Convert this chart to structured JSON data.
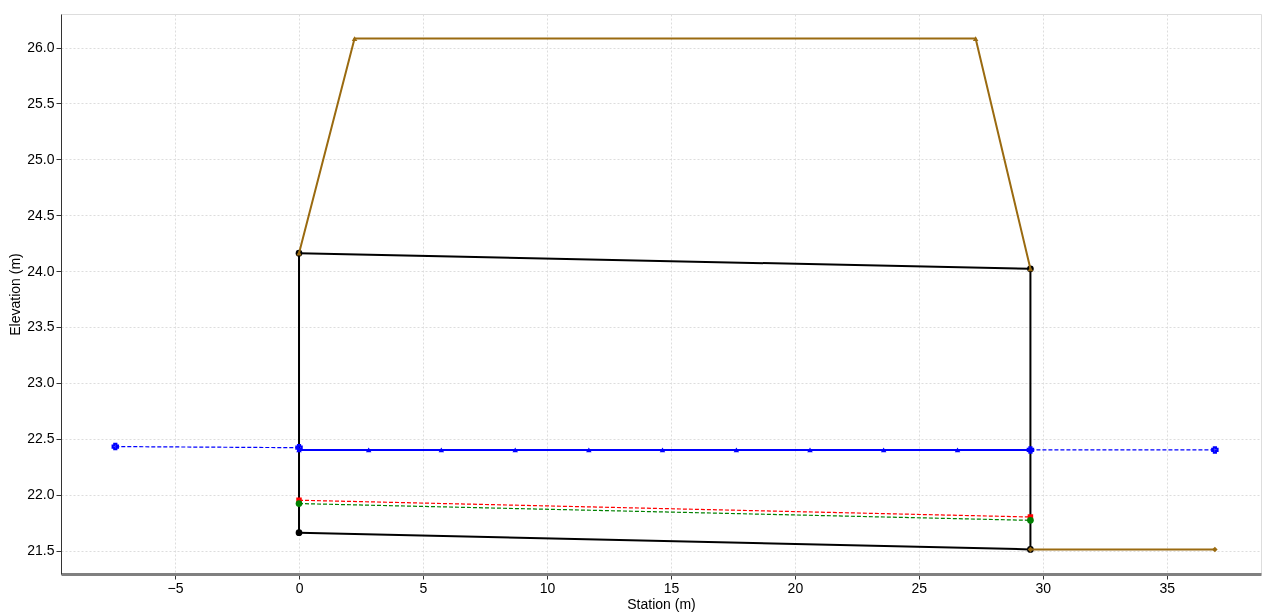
{
  "chart_data": {
    "type": "line",
    "xlabel": "Station (m)",
    "ylabel": "Elevation (m)",
    "xlim": [
      -9.6,
      38.8
    ],
    "ylim": [
      21.29,
      26.3
    ],
    "xticks": [
      -5,
      0,
      5,
      10,
      15,
      20,
      25,
      30,
      35
    ],
    "yticks": [
      {
        "value": 21.5,
        "label": "21.5"
      },
      {
        "value": 22,
        "label": "22.0"
      },
      {
        "value": 22.5,
        "label": "22.5"
      },
      {
        "value": 23,
        "label": "23.0"
      },
      {
        "value": 23.5,
        "label": "23.5"
      },
      {
        "value": 24,
        "label": "24.0"
      },
      {
        "value": 24.5,
        "label": "24.5"
      },
      {
        "value": 25,
        "label": "25.0"
      },
      {
        "value": 25.5,
        "label": "25.5"
      },
      {
        "value": 26,
        "label": "26.0"
      }
    ],
    "grid": true,
    "legend": false,
    "series": [
      {
        "color": "#000000",
        "marker": "circle",
        "line_style": "solid",
        "x": [
          0,
          29.5
        ],
        "values": [
          24.16,
          24.02
        ]
      },
      {
        "color": "#000000",
        "marker": "circle",
        "line_style": "solid",
        "x": [
          0,
          29.5
        ],
        "values": [
          21.66,
          21.51
        ]
      },
      {
        "color": "#000000",
        "marker": "none",
        "line_style": "solid",
        "x": [
          0,
          0
        ],
        "values": [
          21.66,
          24.16
        ]
      },
      {
        "color": "#000000",
        "marker": "none",
        "line_style": "solid",
        "x": [
          29.5,
          29.5
        ],
        "values": [
          21.51,
          24.02
        ]
      },
      {
        "color": "#9a6a10",
        "marker": "triangle",
        "line_style": "solid",
        "x": [
          0,
          2.24,
          27.29,
          29.5
        ],
        "values": [
          24.16,
          26.08,
          26.08,
          24.02
        ]
      },
      {
        "color": "#9a6a10",
        "marker": "diamond",
        "line_style": "solid",
        "x": [
          29.5,
          36.94
        ],
        "values": [
          21.51,
          21.51
        ]
      },
      {
        "color": "#0000ff",
        "marker": "triangle",
        "line_style": "solid",
        "x": [
          0,
          2.81,
          5.74,
          8.72,
          11.69,
          14.66,
          17.64,
          20.61,
          23.58,
          26.56,
          29.5
        ],
        "values": [
          22.4,
          22.4,
          22.4,
          22.4,
          22.4,
          22.4,
          22.4,
          22.4,
          22.4,
          22.4,
          22.4
        ]
      },
      {
        "color": "#0000ff",
        "marker": "cross",
        "line_style": "dashed",
        "x": [
          -7.41,
          0
        ],
        "values": [
          22.43,
          22.42
        ]
      },
      {
        "color": "#0000ff",
        "marker": "cross",
        "line_style": "dashed",
        "x": [
          29.5,
          36.94
        ],
        "values": [
          22.4,
          22.4
        ]
      },
      {
        "color": "#ff0000",
        "marker": "square",
        "line_style": "dashed",
        "x": [
          0,
          29.5
        ],
        "values": [
          21.95,
          21.8
        ]
      },
      {
        "color": "#008000",
        "marker": "circle",
        "line_style": "dashed",
        "x": [
          0,
          29.5
        ],
        "values": [
          21.92,
          21.77
        ]
      }
    ]
  }
}
